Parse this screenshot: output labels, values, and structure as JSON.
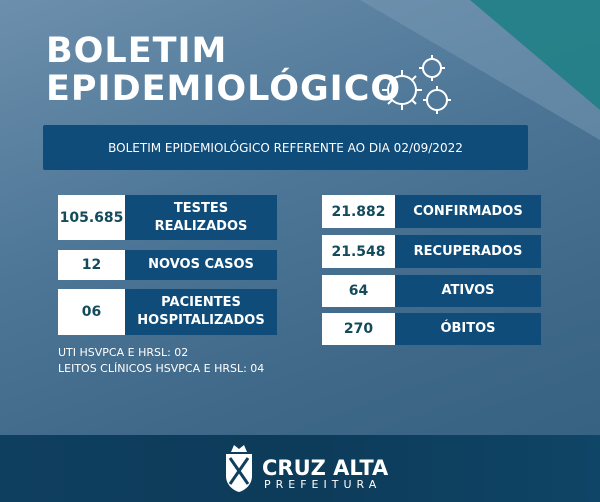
{
  "title": [
    "BOLETIM",
    "EPIDEMIOLÓGICO"
  ],
  "banner": "BOLETIM EPIDEMIOLÓGICO REFERENTE AO DIA 02/09/2022",
  "left_stats": [
    {
      "value": "105.685",
      "label": [
        "TESTES",
        "REALIZADOS"
      ]
    },
    {
      "value": "12",
      "label": [
        "NOVOS CASOS"
      ]
    },
    {
      "value": "06",
      "label": [
        "PACIENTES",
        "HOSPITALIZADOS"
      ]
    }
  ],
  "right_stats": [
    {
      "value": "21.882",
      "label": [
        "CONFIRMADOS"
      ]
    },
    {
      "value": "21.548",
      "label": [
        "RECUPERADOS"
      ]
    },
    {
      "value": "64",
      "label": [
        "ATIVOS"
      ]
    },
    {
      "value": "270",
      "label": [
        "ÓBITOS"
      ]
    }
  ],
  "notes": [
    "UTI HSVPCA E HRSL: 02",
    "LEITOS CLÍNICOS HSVPCA E HRSL: 04"
  ],
  "footer": {
    "name": "CRUZ ALTA",
    "subtitle": "PREFEITURA"
  }
}
